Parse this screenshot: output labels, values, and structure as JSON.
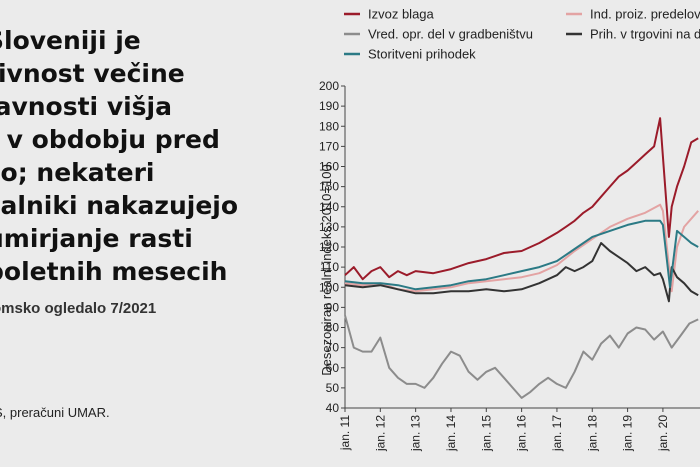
{
  "text": {
    "title": "Sloveniji je\ntivnost večine\njavnosti višja\nt v obdobju pred\nzo; nekateri\nzalniki nakazujejo\numirjanje rasti\npoletnih mesecih",
    "subtitle": "omsko ogledalo 7/2021",
    "source": "S, preračuni UMAR."
  },
  "chart_data": {
    "type": "line",
    "ylabel": "Desezoniran realni indeks 2010=100",
    "ylim": [
      40,
      200
    ],
    "yticks": [
      40,
      50,
      60,
      70,
      80,
      90,
      100,
      110,
      120,
      130,
      140,
      150,
      160,
      170,
      180,
      190,
      200
    ],
    "xlim": [
      2011,
      2021.05
    ],
    "xticks": [
      {
        "x": 2011,
        "label": "jan. 11"
      },
      {
        "x": 2012,
        "label": "jan. 12"
      },
      {
        "x": 2013,
        "label": "jan. 13"
      },
      {
        "x": 2014,
        "label": "jan. 14"
      },
      {
        "x": 2015,
        "label": "jan. 15"
      },
      {
        "x": 2016,
        "label": "jan. 16"
      },
      {
        "x": 2017,
        "label": "jan. 17"
      },
      {
        "x": 2018,
        "label": "jan. 18"
      },
      {
        "x": 2019,
        "label": "jan. 19"
      },
      {
        "x": 2020,
        "label": "jan. 20"
      }
    ],
    "series": [
      {
        "name": "Izvoz blaga",
        "color": "#9b1b2a",
        "x": [
          2011,
          2011.25,
          2011.5,
          2011.75,
          2012,
          2012.25,
          2012.5,
          2012.75,
          2013,
          2013.5,
          2014,
          2014.5,
          2015,
          2015.5,
          2016,
          2016.5,
          2017,
          2017.25,
          2017.5,
          2017.75,
          2018,
          2018.25,
          2018.5,
          2018.75,
          2019,
          2019.25,
          2019.5,
          2019.75,
          2019.92,
          2020,
          2020.17,
          2020.25,
          2020.4,
          2020.6,
          2020.8,
          2021
        ],
        "values": [
          106,
          110,
          104,
          108,
          110,
          105,
          108,
          106,
          108,
          107,
          109,
          112,
          114,
          117,
          118,
          122,
          127,
          130,
          133,
          137,
          140,
          145,
          150,
          155,
          158,
          162,
          166,
          170,
          184,
          165,
          125,
          140,
          150,
          160,
          172,
          174
        ]
      },
      {
        "name": "Ind. proiz. predelovalnih",
        "color": "#e3a3a3",
        "x": [
          2011,
          2011.5,
          2012,
          2012.5,
          2013,
          2013.5,
          2014,
          2014.5,
          2015,
          2015.5,
          2016,
          2016.5,
          2017,
          2017.5,
          2018,
          2018.5,
          2019,
          2019.5,
          2019.92,
          2020,
          2020.25,
          2020.4,
          2020.6,
          2021
        ],
        "values": [
          102,
          101,
          102,
          99,
          98,
          99,
          100,
          102,
          103,
          104,
          105,
          107,
          111,
          118,
          124,
          130,
          134,
          137,
          141,
          138,
          98,
          120,
          130,
          138
        ]
      },
      {
        "name": "Vred. opr. del v gradbeništvu",
        "color": "#8c8c8c",
        "x": [
          2011,
          2011.25,
          2011.5,
          2011.75,
          2012,
          2012.25,
          2012.5,
          2012.75,
          2013,
          2013.25,
          2013.5,
          2013.75,
          2014,
          2014.25,
          2014.5,
          2014.75,
          2015,
          2015.25,
          2015.5,
          2015.75,
          2016,
          2016.25,
          2016.5,
          2016.75,
          2017,
          2017.25,
          2017.5,
          2017.75,
          2018,
          2018.25,
          2018.5,
          2018.75,
          2019,
          2019.25,
          2019.5,
          2019.75,
          2020,
          2020.25,
          2020.5,
          2020.75,
          2021
        ],
        "values": [
          86,
          70,
          68,
          68,
          75,
          60,
          55,
          52,
          52,
          50,
          55,
          62,
          68,
          66,
          58,
          54,
          58,
          60,
          55,
          50,
          45,
          48,
          52,
          55,
          52,
          50,
          58,
          68,
          64,
          72,
          76,
          70,
          77,
          80,
          79,
          74,
          78,
          70,
          76,
          82,
          84
        ]
      },
      {
        "name": "Prih. v trgovini na drobno",
        "color": "#333333",
        "x": [
          2011,
          2011.5,
          2012,
          2012.5,
          2013,
          2013.5,
          2014,
          2014.5,
          2015,
          2015.5,
          2016,
          2016.5,
          2017,
          2017.25,
          2017.5,
          2017.75,
          2018,
          2018.25,
          2018.5,
          2018.75,
          2019,
          2019.25,
          2019.5,
          2019.75,
          2019.92,
          2020,
          2020.17,
          2020.25,
          2020.4,
          2020.6,
          2020.8,
          2021
        ],
        "values": [
          101,
          100,
          101,
          99,
          97,
          97,
          98,
          98,
          99,
          98,
          99,
          102,
          106,
          110,
          108,
          110,
          113,
          122,
          118,
          115,
          112,
          108,
          110,
          106,
          107,
          104,
          93,
          110,
          105,
          102,
          98,
          96
        ]
      },
      {
        "name": "Storitveni prihodek",
        "color": "#2b7a85",
        "x": [
          2011,
          2011.5,
          2012,
          2012.5,
          2013,
          2013.5,
          2014,
          2014.5,
          2015,
          2015.5,
          2016,
          2016.5,
          2017,
          2017.5,
          2018,
          2018.5,
          2019,
          2019.5,
          2019.92,
          2020,
          2020.2,
          2020.4,
          2020.6,
          2020.8,
          2021
        ],
        "values": [
          103,
          102,
          102,
          101,
          99,
          100,
          101,
          103,
          104,
          106,
          108,
          110,
          113,
          119,
          125,
          128,
          131,
          133,
          133,
          131,
          100,
          128,
          125,
          122,
          120
        ]
      }
    ],
    "legend": [
      {
        "name": "Izvoz blaga",
        "color": "#9b1b2a"
      },
      {
        "name": "Ind. proiz. predelovalnih",
        "color": "#e3a3a3"
      },
      {
        "name": "Vred. opr. del v gradbeništvu",
        "color": "#8c8c8c"
      },
      {
        "name": "Prih. v trgovini na drobno",
        "color": "#333333"
      },
      {
        "name": "Storitveni prihodek",
        "color": "#2b7a85"
      }
    ]
  }
}
